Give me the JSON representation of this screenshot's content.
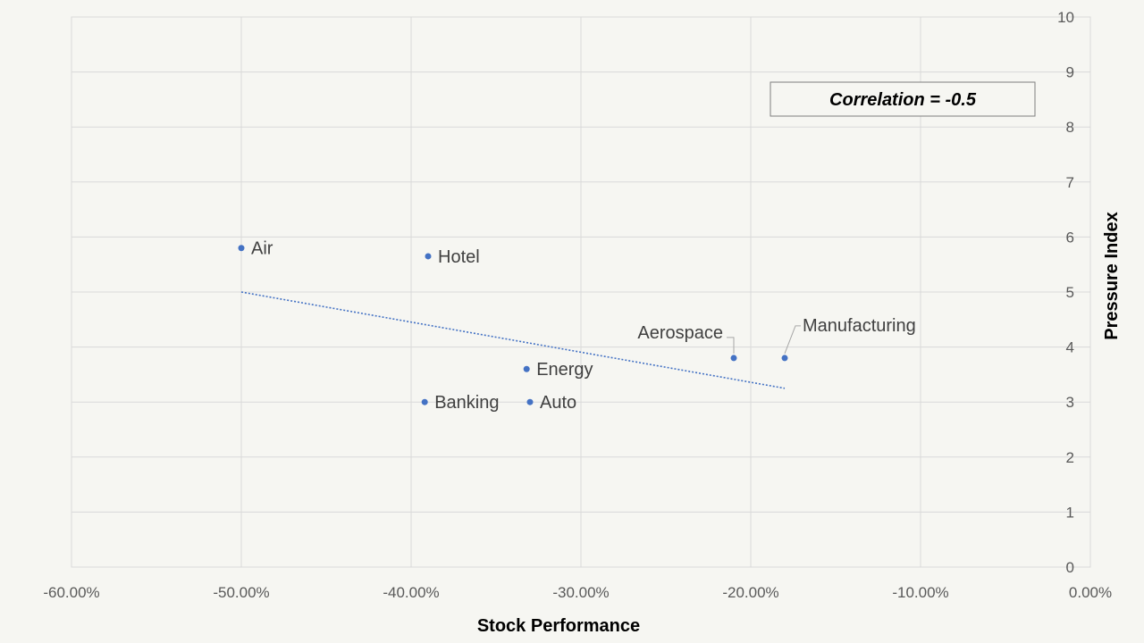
{
  "chart_data": {
    "type": "scatter",
    "xlabel": "Stock Performance",
    "ylabel": "Pressure Index",
    "xlim": [
      -0.6,
      0
    ],
    "ylim": [
      0,
      10
    ],
    "x_ticks": [
      "-60.00%",
      "-50.00%",
      "-40.00%",
      "-30.00%",
      "-20.00%",
      "-10.00%",
      "0.00%"
    ],
    "y_ticks": [
      "0",
      "1",
      "2",
      "3",
      "4",
      "5",
      "6",
      "7",
      "8",
      "9",
      "10"
    ],
    "y_axis_position": "right",
    "grid": true,
    "annotation": "Correlation = -0.5",
    "points": [
      {
        "label": "Air",
        "x": -0.5,
        "y": 5.8
      },
      {
        "label": "Hotel",
        "x": -0.39,
        "y": 5.65
      },
      {
        "label": "Energy",
        "x": -0.332,
        "y": 3.6
      },
      {
        "label": "Banking",
        "x": -0.392,
        "y": 3.0
      },
      {
        "label": "Auto",
        "x": -0.33,
        "y": 3.0
      },
      {
        "label": "Aerospace",
        "x": -0.21,
        "y": 3.8
      },
      {
        "label": "Manufacturing",
        "x": -0.18,
        "y": 3.8
      }
    ],
    "trendline": {
      "style": "dotted",
      "x": [
        -0.5,
        -0.18
      ],
      "y": [
        5.0,
        3.25
      ]
    },
    "colors": {
      "marker": "#4472c4",
      "trendline": "#4472c4",
      "grid": "#d9d9d9"
    }
  }
}
